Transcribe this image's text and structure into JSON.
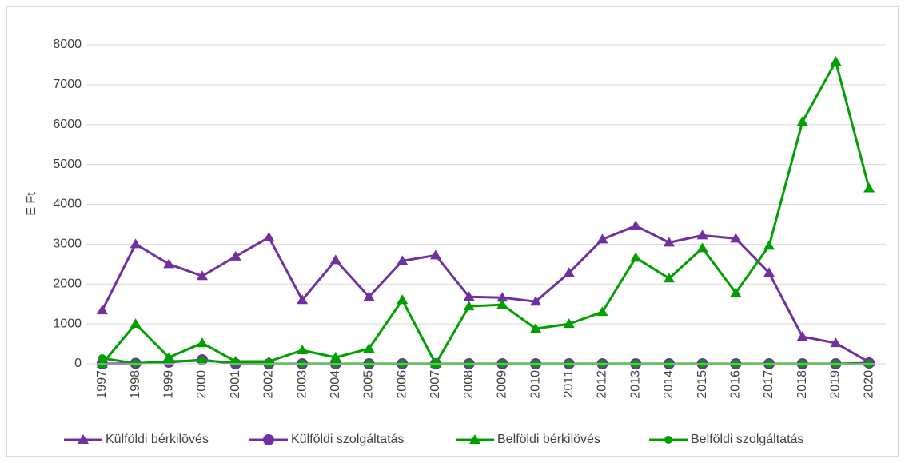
{
  "chart_data": {
    "type": "line",
    "y_label": "E Ft",
    "categories": [
      "1997",
      "1998",
      "1999",
      "2000",
      "2001",
      "2002",
      "2003",
      "2004",
      "2005",
      "2006",
      "2007",
      "2008",
      "2009",
      "2010",
      "2011",
      "2012",
      "2013",
      "2014",
      "2015",
      "2016",
      "2017",
      "2018",
      "2019",
      "2020"
    ],
    "ylim": [
      0,
      8000
    ],
    "yticks": [
      0,
      1000,
      2000,
      3000,
      4000,
      5000,
      6000,
      7000,
      8000
    ],
    "grid": true,
    "legend": "bottom",
    "series": [
      {
        "name": "Külföldi bérkilövés",
        "color": "#7030a0",
        "marker": "triangle",
        "values": [
          1340,
          3000,
          2500,
          2200,
          2690,
          3170,
          1600,
          2600,
          1680,
          2580,
          2720,
          1680,
          1660,
          1560,
          2280,
          3120,
          3460,
          3040,
          3220,
          3140,
          2280,
          680,
          520,
          40
        ]
      },
      {
        "name": "Külföldi szolgáltatás",
        "color": "#7030a0",
        "marker": "circle",
        "values": [
          0,
          10,
          40,
          100,
          0,
          0,
          0,
          0,
          0,
          0,
          0,
          0,
          0,
          0,
          0,
          0,
          0,
          0,
          0,
          0,
          0,
          0,
          0,
          20
        ]
      },
      {
        "name": "Belföldi bérkilövés",
        "color": "#00a000",
        "marker": "triangle",
        "values": [
          0,
          1000,
          160,
          520,
          60,
          60,
          340,
          160,
          380,
          1600,
          0,
          1440,
          1480,
          880,
          1000,
          1300,
          2660,
          2140,
          2900,
          1780,
          2960,
          6070,
          7580,
          4400
        ]
      },
      {
        "name": "Belföldi szolgáltatás",
        "color": "#00a000",
        "marker": "dot",
        "values": [
          140,
          10,
          60,
          80,
          30,
          0,
          0,
          0,
          0,
          0,
          0,
          0,
          0,
          0,
          0,
          0,
          0,
          0,
          0,
          0,
          0,
          0,
          0,
          0
        ]
      }
    ]
  }
}
